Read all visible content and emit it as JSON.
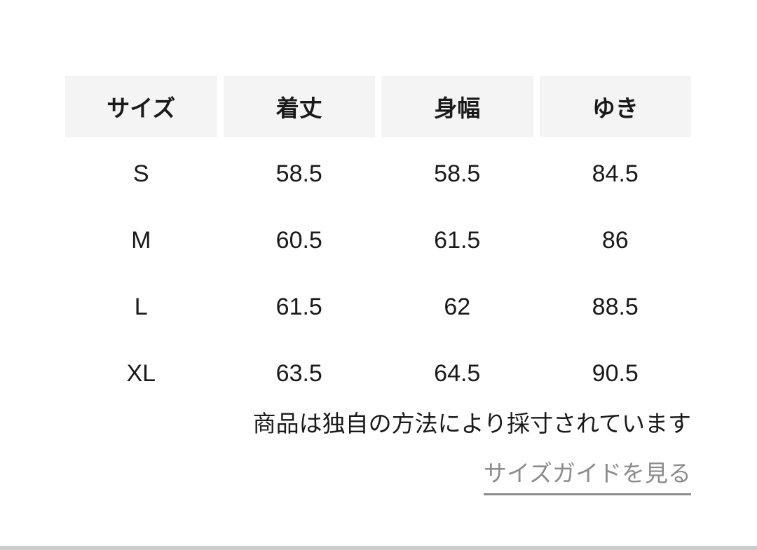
{
  "table": {
    "headers": [
      "サイズ",
      "着丈",
      "身幅",
      "ゆき"
    ],
    "rows": [
      [
        "S",
        "58.5",
        "58.5",
        "84.5"
      ],
      [
        "M",
        "60.5",
        "61.5",
        "86"
      ],
      [
        "L",
        "61.5",
        "62",
        "88.5"
      ],
      [
        "XL",
        "63.5",
        "64.5",
        "90.5"
      ]
    ]
  },
  "note": "商品は独自の方法により採寸されています",
  "size_guide_link": "サイズガイドを見る",
  "colors": {
    "header_background": "#f4f4f4",
    "text": "#1a1a1a",
    "link": "#8c8c8c",
    "bottom_divider": "#cbcbcb",
    "page_background": "#ffffff"
  },
  "chart_data": {
    "type": "table",
    "title": "",
    "columns": [
      "サイズ",
      "着丈",
      "身幅",
      "ゆき"
    ],
    "rows": [
      {
        "サイズ": "S",
        "着丈": 58.5,
        "身幅": 58.5,
        "ゆき": 84.5
      },
      {
        "サイズ": "M",
        "着丈": 60.5,
        "身幅": 61.5,
        "ゆき": 86
      },
      {
        "サイズ": "L",
        "着丈": 61.5,
        "身幅": 62,
        "ゆき": 88.5
      },
      {
        "サイズ": "XL",
        "着丈": 63.5,
        "身幅": 64.5,
        "ゆき": 90.5
      }
    ]
  }
}
